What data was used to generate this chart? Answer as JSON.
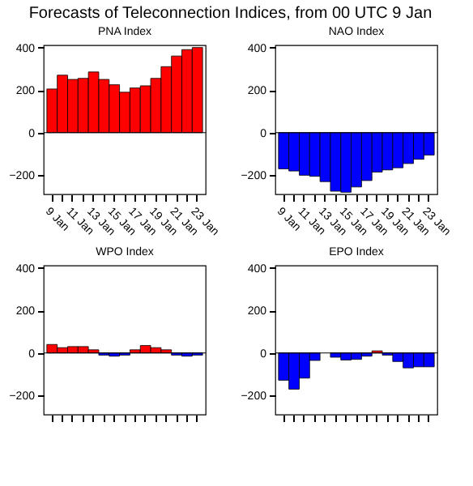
{
  "chart_data": [
    {
      "type": "bar",
      "title": "PNA Index",
      "annotations": [
        "Forecasts of Teleconnection Indices, from 00 UTC 9 Jan"
      ],
      "categories": [
        "9 Jan",
        null,
        "11 Jan",
        null,
        "13 Jan",
        null,
        "15 Jan",
        null,
        "17 Jan",
        null,
        "19 Jan",
        null,
        "21 Jan",
        null,
        "23 Jan"
      ],
      "values": [
        205,
        270,
        250,
        255,
        285,
        250,
        225,
        190,
        210,
        220,
        255,
        310,
        360,
        390,
        400
      ],
      "colors": [
        "#ff0000",
        "#ff0000",
        "#ff0000",
        "#ff0000",
        "#ff0000",
        "#ff0000",
        "#ff0000",
        "#ff0000",
        "#ff0000",
        "#ff0000",
        "#ff0000",
        "#ff0000",
        "#ff0000",
        "#ff0000",
        "#ff0000"
      ],
      "ylim": [
        -290,
        410
      ],
      "yticks": [
        -200,
        0,
        200,
        400
      ],
      "ref_lines": [
        {
          "axis": "y",
          "value": 0
        }
      ]
    },
    {
      "type": "bar",
      "title": "NAO Index",
      "categories": [
        "9 Jan",
        null,
        "11 Jan",
        null,
        "13 Jan",
        null,
        "15 Jan",
        null,
        "17 Jan",
        null,
        "19 Jan",
        null,
        "21 Jan",
        null,
        "23 Jan"
      ],
      "values": [
        -170,
        -180,
        -200,
        -205,
        -230,
        -275,
        -280,
        -255,
        -225,
        -185,
        -175,
        -165,
        -145,
        -125,
        -105
      ],
      "colors": [
        "#0000ff",
        "#0000ff",
        "#0000ff",
        "#0000ff",
        "#0000ff",
        "#0000ff",
        "#0000ff",
        "#0000ff",
        "#0000ff",
        "#0000ff",
        "#0000ff",
        "#0000ff",
        "#0000ff",
        "#0000ff",
        "#0000ff"
      ],
      "ylim": [
        -290,
        410
      ],
      "yticks": [
        -200,
        0,
        200,
        400
      ],
      "ref_lines": [
        {
          "axis": "y",
          "value": 0
        }
      ]
    },
    {
      "type": "bar",
      "title": "WPO Index",
      "categories": [
        null,
        null,
        null,
        null,
        null,
        null,
        null,
        null,
        null,
        null,
        null,
        null,
        null,
        null,
        null
      ],
      "values": [
        40,
        25,
        30,
        30,
        15,
        -10,
        -15,
        -10,
        15,
        35,
        25,
        15,
        -10,
        -15,
        -10
      ],
      "colors": [
        "#ff0000",
        "#ff0000",
        "#ff0000",
        "#ff0000",
        "#ff0000",
        "#0000ff",
        "#0000ff",
        "#0000ff",
        "#ff0000",
        "#ff0000",
        "#ff0000",
        "#ff0000",
        "#0000ff",
        "#0000ff",
        "#0000ff"
      ],
      "ylim": [
        -290,
        410
      ],
      "yticks": [
        -200,
        0,
        200,
        400
      ],
      "tick_labels": "y",
      "ref_lines": [
        {
          "axis": "y",
          "value": 0
        }
      ]
    },
    {
      "type": "bar",
      "title": "EPO Index",
      "categories": [
        null,
        null,
        null,
        null,
        null,
        null,
        null,
        null,
        null,
        null,
        null,
        null,
        null,
        null,
        null
      ],
      "values": [
        -128,
        -170,
        -118,
        -35,
        null,
        -20,
        -33,
        -30,
        -15,
        10,
        -10,
        -40,
        -70,
        -65,
        -65
      ],
      "colors": [
        "#0000ff",
        "#0000ff",
        "#0000ff",
        "#0000ff",
        "#0000ff",
        "#0000ff",
        "#0000ff",
        "#0000ff",
        "#0000ff",
        "#ff0000",
        "#0000ff",
        "#0000ff",
        "#0000ff",
        "#0000ff",
        "#0000ff"
      ],
      "ylim": [
        -290,
        410
      ],
      "yticks": [
        -200,
        0,
        200,
        400
      ],
      "tick_labels": "y",
      "ref_lines": [
        {
          "axis": "y",
          "value": 0
        }
      ]
    }
  ]
}
